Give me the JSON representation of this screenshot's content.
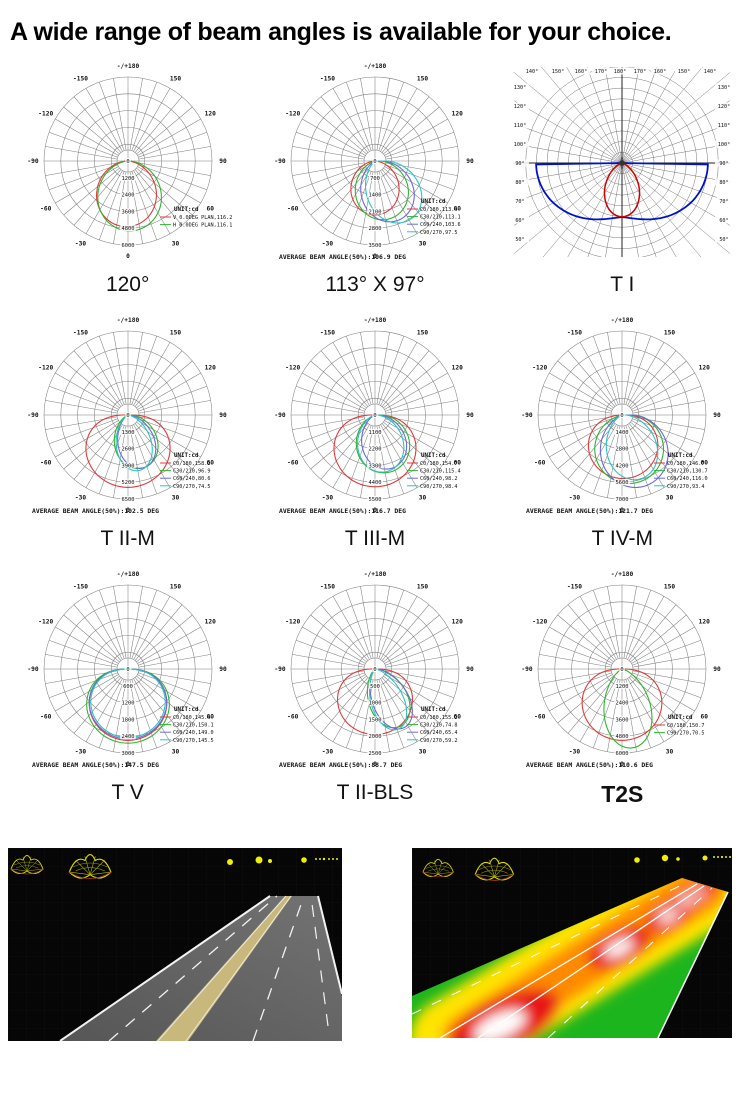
{
  "page": {
    "title": "A wide range of beam angles is available for your choice."
  },
  "polar_angle_labels": [
    {
      "a": 180,
      "t": "-/+180"
    },
    {
      "a": -150,
      "t": "-150"
    },
    {
      "a": 150,
      "t": "150"
    },
    {
      "a": -120,
      "t": "-120"
    },
    {
      "a": 120,
      "t": "120"
    },
    {
      "a": -90,
      "t": "-90"
    },
    {
      "a": 90,
      "t": "90"
    },
    {
      "a": -60,
      "t": "-60"
    },
    {
      "a": 60,
      "t": "60"
    },
    {
      "a": -30,
      "t": "-30"
    },
    {
      "a": 30,
      "t": "30"
    },
    {
      "a": 0,
      "t": "0"
    }
  ],
  "icons": {
    "photometric_web": "photometric-web-icon",
    "luminaire_dots": "luminaire-dots-icon"
  },
  "chart_data": [
    {
      "type": "polarA",
      "label": "120°",
      "unit_label": "UNIT:cd",
      "scale_max": 6000,
      "radial_ticks": [
        0,
        1200,
        2400,
        3600,
        4800,
        6000
      ],
      "series": [
        {
          "name": "V 0.0DEG PLAN,116.2",
          "color": "#e03a3a",
          "beam": 116.2,
          "peak": 4700,
          "tilt": -3
        },
        {
          "name": "H 0.0DEG PLAN,116.1",
          "color": "#2fb42f",
          "beam": 116.1,
          "peak": 5000,
          "tilt": 3
        }
      ],
      "average": ""
    },
    {
      "type": "polarA",
      "label": "113° X 97°",
      "unit_label": "UNIT:cd",
      "scale_max": 3500,
      "radial_ticks": [
        0,
        700,
        1400,
        2100,
        2800,
        3500
      ],
      "series": [
        {
          "name": "C0/180,113.4",
          "color": "#e03a3a",
          "beam": 113.4,
          "peak": 2250,
          "tilt": 0
        },
        {
          "name": "C30/210,113.1",
          "color": "#2fb42f",
          "beam": 113.1,
          "peak": 2500,
          "tilt": 15
        },
        {
          "name": "C60/240,103.6",
          "color": "#6a6ad8",
          "beam": 103.6,
          "peak": 2700,
          "tilt": 25
        },
        {
          "name": "C90/270,97.5",
          "color": "#2cc3c3",
          "beam": 97.5,
          "peak": 2950,
          "tilt": 35
        }
      ],
      "average": "AVERAGE BEAM ANGLE(50%):106.9 DEG"
    },
    {
      "type": "polarB",
      "label": "T I",
      "top_labels": [
        "140°",
        "150°",
        "160°",
        "170°",
        "180°",
        "170°",
        "160°",
        "150°",
        "140°"
      ],
      "side_labels": [
        "130°",
        "120°",
        "110°",
        "100°",
        "90°",
        "80°",
        "70°",
        "60°",
        "50°"
      ],
      "series": [
        {
          "name": "horizontal-plane",
          "color": "#0012c8",
          "shape": "batwing",
          "base": 0.55,
          "amp": 0.33
        },
        {
          "name": "vertical-plane",
          "color": "#cf0000",
          "shape": "lobe",
          "beam": 78,
          "peak": 0.56
        }
      ]
    },
    {
      "type": "polarA",
      "label": "T II-M",
      "unit_label": "UNIT:cd",
      "scale_max": 6500,
      "radial_ticks": [
        0,
        1300,
        2600,
        3900,
        5200,
        6500
      ],
      "series": [
        {
          "name": "C0/180,158.2",
          "color": "#e03a3a",
          "beam": 158.2,
          "peak": 5600,
          "tilt": 0
        },
        {
          "name": "C30/210,96.9",
          "color": "#2fb42f",
          "beam": 96.9,
          "peak": 4300,
          "tilt": 18
        },
        {
          "name": "C60/240,80.6",
          "color": "#6a6ad8",
          "beam": 80.6,
          "peak": 4300,
          "tilt": 18
        },
        {
          "name": "C90/270,74.5",
          "color": "#2cc3c3",
          "beam": 74.5,
          "peak": 4400,
          "tilt": 12
        }
      ],
      "average": "AVERAGE BEAM ANGLE(50%):102.5 DEG"
    },
    {
      "type": "polarA",
      "label": "T III-M",
      "unit_label": "UNIT:cd",
      "scale_max": 5500,
      "radial_ticks": [
        0,
        1100,
        2200,
        3300,
        4400,
        5500
      ],
      "series": [
        {
          "name": "C0/180,154.7",
          "color": "#e03a3a",
          "beam": 154.7,
          "peak": 4700,
          "tilt": 0
        },
        {
          "name": "C30/210,115.4",
          "color": "#2fb42f",
          "beam": 115.4,
          "peak": 3900,
          "tilt": 18
        },
        {
          "name": "C60/240,98.2",
          "color": "#6a6ad8",
          "beam": 98.2,
          "peak": 3700,
          "tilt": 20
        },
        {
          "name": "C90/270,98.4",
          "color": "#2cc3c3",
          "beam": 98.4,
          "peak": 3800,
          "tilt": 12
        }
      ],
      "average": "AVERAGE BEAM ANGLE(50%):116.7 DEG"
    },
    {
      "type": "polarA",
      "label": "T IV-M",
      "unit_label": "UNIT:cd",
      "scale_max": 7000,
      "radial_ticks": [
        0,
        1400,
        2800,
        4200,
        5600,
        7000
      ],
      "series": [
        {
          "name": "C0/180,146.7",
          "color": "#e03a3a",
          "beam": 146.7,
          "peak": 5300,
          "tilt": 3
        },
        {
          "name": "C30/210,130.7",
          "color": "#2fb42f",
          "beam": 130.7,
          "peak": 5800,
          "tilt": 15
        },
        {
          "name": "C60/240,116.0",
          "color": "#6a6ad8",
          "beam": 116.0,
          "peak": 6300,
          "tilt": 22
        },
        {
          "name": "C90/270,93.4",
          "color": "#2cc3c3",
          "beam": 93.4,
          "peak": 5600,
          "tilt": 18
        }
      ],
      "average": "AVERAGE BEAM ANGLE(50%):121.7 DEG"
    },
    {
      "type": "polarA",
      "label": "T V",
      "unit_label": "UNIT:cd",
      "scale_max": 3000,
      "radial_ticks": [
        0,
        600,
        1200,
        1800,
        2400,
        3000
      ],
      "series": [
        {
          "name": "C0/180,145.4",
          "color": "#e03a3a",
          "beam": 145.4,
          "peak": 2550,
          "tilt": 0
        },
        {
          "name": "C30/210,150.1",
          "color": "#2fb42f",
          "beam": 150.1,
          "peak": 2650,
          "tilt": 0
        },
        {
          "name": "C60/240,149.0",
          "color": "#6a6ad8",
          "beam": 149.0,
          "peak": 2500,
          "tilt": 0
        },
        {
          "name": "C90/270,145.5",
          "color": "#2cc3c3",
          "beam": 145.5,
          "peak": 2450,
          "tilt": 0
        }
      ],
      "average": "AVERAGE BEAM ANGLE(50%):147.5 DEG"
    },
    {
      "type": "polarA",
      "label": "T II-BLS",
      "unit_label": "UNIT:cd",
      "scale_max": 2500,
      "radial_ticks": [
        0,
        500,
        1000,
        1500,
        2000,
        2500
      ],
      "series": [
        {
          "name": "C0/180,155.2",
          "color": "#e03a3a",
          "beam": 155.2,
          "peak": 1950,
          "tilt": 0
        },
        {
          "name": "C30/210,74.8",
          "color": "#2fb42f",
          "beam": 74.8,
          "peak": 1900,
          "tilt": 25
        },
        {
          "name": "C60/240,65.4",
          "color": "#6a6ad8",
          "beam": 65.4,
          "peak": 2000,
          "tilt": 28
        },
        {
          "name": "C90/270,59.2",
          "color": "#2cc3c3",
          "beam": 59.2,
          "peak": 1950,
          "tilt": 22
        }
      ],
      "average": "AVERAGE BEAM ANGLE(50%):88.7 DEG"
    },
    {
      "type": "polarA",
      "label": "T2S",
      "label_bold": true,
      "unit_label": "UNIT:cd",
      "scale_max": 6000,
      "radial_ticks": [
        0,
        1200,
        2400,
        3600,
        4800,
        6000
      ],
      "series": [
        {
          "name": "C0/180,150.7",
          "color": "#e03a3a",
          "beam": 150.7,
          "peak": 5100,
          "tilt": 0
        },
        {
          "name": "C90/270,70.5",
          "color": "#2fb42f",
          "beam": 70.5,
          "peak": 5700,
          "tilt": 8
        }
      ],
      "average": "AVERAGE BEAM ANGLE(50%):110.6 DEG"
    }
  ]
}
